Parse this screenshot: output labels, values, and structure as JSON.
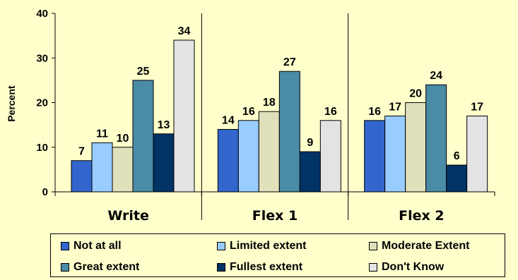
{
  "chart_data": {
    "type": "bar",
    "title": "",
    "xlabel": "",
    "ylabel": "Percent",
    "ylim": [
      0,
      40
    ],
    "yticks": [
      "0",
      "10",
      "20",
      "30",
      "40"
    ],
    "grid": false,
    "legend_position": "bottom",
    "categories": [
      "Write",
      "Flex 1",
      "Flex 2"
    ],
    "series": [
      {
        "name": "Not at all",
        "color": "#3366cc",
        "values": [
          7,
          14,
          16
        ]
      },
      {
        "name": "Limited extent",
        "color": "#99ccff",
        "values": [
          11,
          16,
          17
        ]
      },
      {
        "name": "Moderate Extent",
        "color": "#e0e0bb",
        "values": [
          10,
          18,
          20
        ]
      },
      {
        "name": "Great extent",
        "color": "#4a8ba6",
        "values": [
          25,
          27,
          24
        ]
      },
      {
        "name": "Fullest extent",
        "color": "#003366",
        "values": [
          13,
          9,
          6
        ]
      },
      {
        "name": "Don't Know",
        "color": "#e3e3e3",
        "values": [
          34,
          16,
          17
        ]
      }
    ]
  }
}
